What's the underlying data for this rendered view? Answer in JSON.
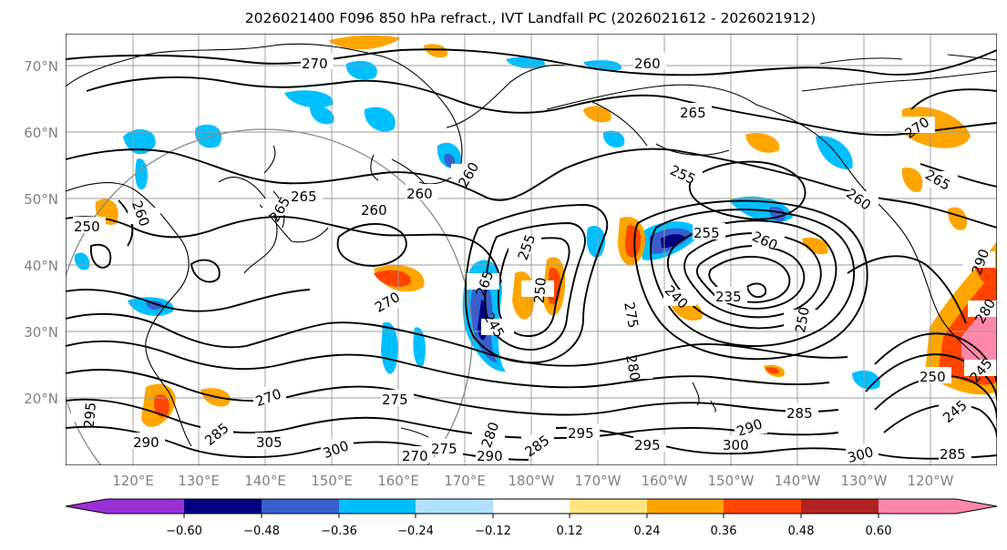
{
  "title": "2026021400 F096 850 hPa refract., IVT Landfall PC (2026021612 - 2026021912)",
  "lat_labels": [
    "70°N",
    "60°N",
    "50°N",
    "40°N",
    "30°N",
    "20°N"
  ],
  "lon_labels": [
    "120°E",
    "130°E",
    "140°E",
    "150°E",
    "160°E",
    "170°E",
    "180°W",
    "170°W",
    "160°W",
    "150°W",
    "140°W",
    "130°W",
    "120°W"
  ],
  "colorbar": {
    "colors": [
      "#9b30d9",
      "#000080",
      "#3a5fcd",
      "#00bfff",
      "#b0e2ff",
      "#ffffff",
      "#ffe680",
      "#ffa500",
      "#ff4500",
      "#b22222",
      "#ff88aa"
    ],
    "tick_labels": [
      "−0.60",
      "−0.48",
      "−0.36",
      "−0.24",
      "−0.12",
      "0.12",
      "0.24",
      "0.36",
      "0.48",
      "0.60"
    ]
  },
  "contour_labels": {
    "c1": "270",
    "c2": "260",
    "c3": "265",
    "c4": "270",
    "c5": "265",
    "c6": "255",
    "c7": "260",
    "c8": "265",
    "c9": "250",
    "c10": "260",
    "c11": "265",
    "c12": "260",
    "c13": "260",
    "c14": "260",
    "c15": "255",
    "c16": "255",
    "c17": "260",
    "c18": "270",
    "c19": "265",
    "c20": "250",
    "c21": "245",
    "c22": "240",
    "c23": "235",
    "c24": "250",
    "c25": "275",
    "c26": "280",
    "c27": "270",
    "c28": "275",
    "c29": "285",
    "c30": "295",
    "c31": "295",
    "c32": "290",
    "c33": "300",
    "c34": "285",
    "c35": "300",
    "c36": "305",
    "c37": "300",
    "c38": "270",
    "c39": "275",
    "c40": "290",
    "c41": "280",
    "c42": "280",
    "c43": "290",
    "c44": "250",
    "c45": "245",
    "c46": "245",
    "c47": "285",
    "c48": "290",
    "c49": "285",
    "c50": "295"
  }
}
